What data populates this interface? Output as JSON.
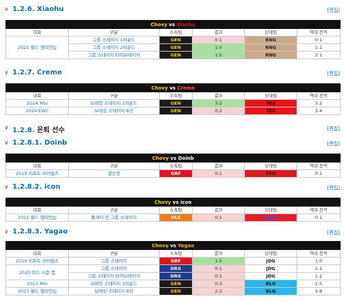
{
  "edit_label": "[편집]",
  "headers": [
    "대회",
    "구분",
    "소속팀",
    "결과",
    "상대팀",
    "역대 전적"
  ],
  "sections": [
    {
      "num": "1.2.6.",
      "title": "Xiaohu"
    },
    {
      "num": "1.2.7.",
      "title": "Creme"
    },
    {
      "num": "1.2.8.",
      "title": "은퇴 선수"
    },
    {
      "num": "1.2.8.1.",
      "title": "Doinb"
    },
    {
      "num": "1.2.8.2.",
      "title": "icon"
    },
    {
      "num": "1.2.8.3.",
      "title": "Yagao"
    }
  ],
  "tables": [
    {
      "player": "Chovy",
      "vs": "vs",
      "opponent": "Xiaohu",
      "event": "2022 월드 챔피언십",
      "rows": [
        {
          "stage": "그룹 스테이지 1라운드",
          "team": "GEN",
          "result": "0:1",
          "opp": "RNG",
          "record": "0:1"
        },
        {
          "stage": "그룹 스테이지 2라운드",
          "team": "GEN",
          "result": "1:0",
          "opp": "RNG",
          "record": "1:1"
        },
        {
          "stage": "그룹 스테이지 타이브레이커",
          "team": "GEN",
          "result": "1:0",
          "opp": "RNG",
          "record": "2:1"
        }
      ]
    },
    {
      "player": "Chovy",
      "vs": "vs",
      "opponent": "Creme",
      "rows": [
        {
          "event": "2024 MSI",
          "stage": "브래킷 스테이지 2라운드",
          "team": "GEN",
          "result": "3:2",
          "opp": "TES",
          "record": "3:2"
        },
        {
          "event": "2024 EWC",
          "stage": "브래킷 스테이지 8강",
          "team": "GEN",
          "result": "0:2",
          "opp": "TES",
          "record": "3:4"
        }
      ]
    },
    {
      "player": "Chovy",
      "vs": "vs",
      "opponent": "Doinb",
      "rows": [
        {
          "event": "2019 리프트 라이벌즈",
          "stage": "결승전",
          "team": "GRF",
          "result": "0:1",
          "opp": "FPX",
          "record": "0:1"
        }
      ]
    },
    {
      "player": "Chovy",
      "vs": "vs",
      "opponent": "icon",
      "rows": [
        {
          "event": "2021 월드 챔피언십",
          "stage": "플레이-인 그룹 스테이지",
          "team": "HLE",
          "result": "0:1",
          "opp": "LNG",
          "record": "0:1"
        }
      ]
    },
    {
      "player": "Chovy",
      "vs": "vs",
      "opponent": "Yagao",
      "rows": [
        {
          "event": "2019 리프트 라이벌즈",
          "stage": "그룹 스테이지",
          "team": "GRF",
          "result": "1:0",
          "opp": "JDG",
          "record": "1:0"
        },
        {
          "event": "2020 미드 시즌 컵",
          "stage": "그룹 스테이지",
          "team": "DRX",
          "result": "0:1",
          "opp": "JDG",
          "record": "1:1"
        },
        {
          "stage": "그룹 스테이지 타이브레이커",
          "team": "DRX",
          "result": "0:1",
          "opp": "JDG",
          "record": "1:2"
        },
        {
          "event": "2023 MSI",
          "stage": "브래킷 스테이지 3라운드",
          "team": "GEN",
          "result": "0:3",
          "opp": "BLG",
          "record": "1:5"
        },
        {
          "event": "2023 월드 챔피언십",
          "stage": "브래킷 스테이지 8강",
          "team": "GEN",
          "result": "2:3",
          "opp": "BLG",
          "record": "3:8"
        }
      ]
    }
  ]
}
